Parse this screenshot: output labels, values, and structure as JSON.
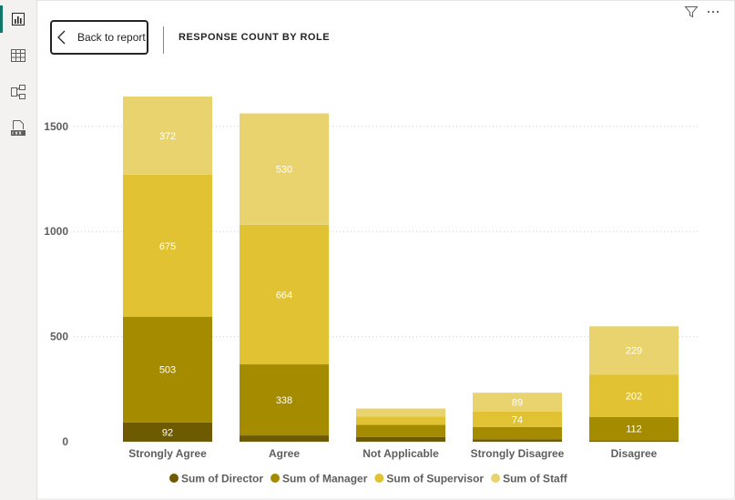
{
  "rail": {
    "icons": [
      "report-view-icon",
      "table-view-icon",
      "model-view-icon",
      "dax-query-view-icon"
    ],
    "active_color": "#117865"
  },
  "header": {
    "back_label": "Back to report",
    "title": "RESPONSE COUNT BY ROLE"
  },
  "toolbar": {
    "icons": [
      "filter-icon",
      "more-options-icon"
    ]
  },
  "chart_data": {
    "type": "bar",
    "stacked": true,
    "categories": [
      "Strongly Agree",
      "Agree",
      "Not Applicable",
      "Strongly Disagree",
      "Disagree"
    ],
    "series": [
      {
        "name": "Sum of Director",
        "color": "#6e5a00",
        "values": [
          92,
          30,
          22,
          12,
          6
        ]
      },
      {
        "name": "Sum of Manager",
        "color": "#a58b00",
        "values": [
          503,
          338,
          58,
          58,
          112
        ]
      },
      {
        "name": "Sum of Supervisor",
        "color": "#e1c233",
        "values": [
          675,
          664,
          40,
          74,
          202
        ]
      },
      {
        "name": "Sum of Staff",
        "color": "#e8d36f",
        "values": [
          372,
          530,
          38,
          89,
          229
        ]
      }
    ],
    "data_labels": {
      "Sum of Director": [
        92,
        null,
        null,
        null,
        null
      ],
      "Sum of Manager": [
        503,
        338,
        null,
        null,
        112
      ],
      "Sum of Supervisor": [
        675,
        664,
        null,
        74,
        202
      ],
      "Sum of Staff": [
        372,
        530,
        null,
        89,
        229
      ]
    },
    "yticks": [
      0,
      500,
      1000,
      1500
    ],
    "ylim": [
      0,
      1750
    ],
    "grid": true,
    "legend_position": "bottom",
    "title": "RESPONSE COUNT BY ROLE",
    "xlabel": "",
    "ylabel": ""
  }
}
